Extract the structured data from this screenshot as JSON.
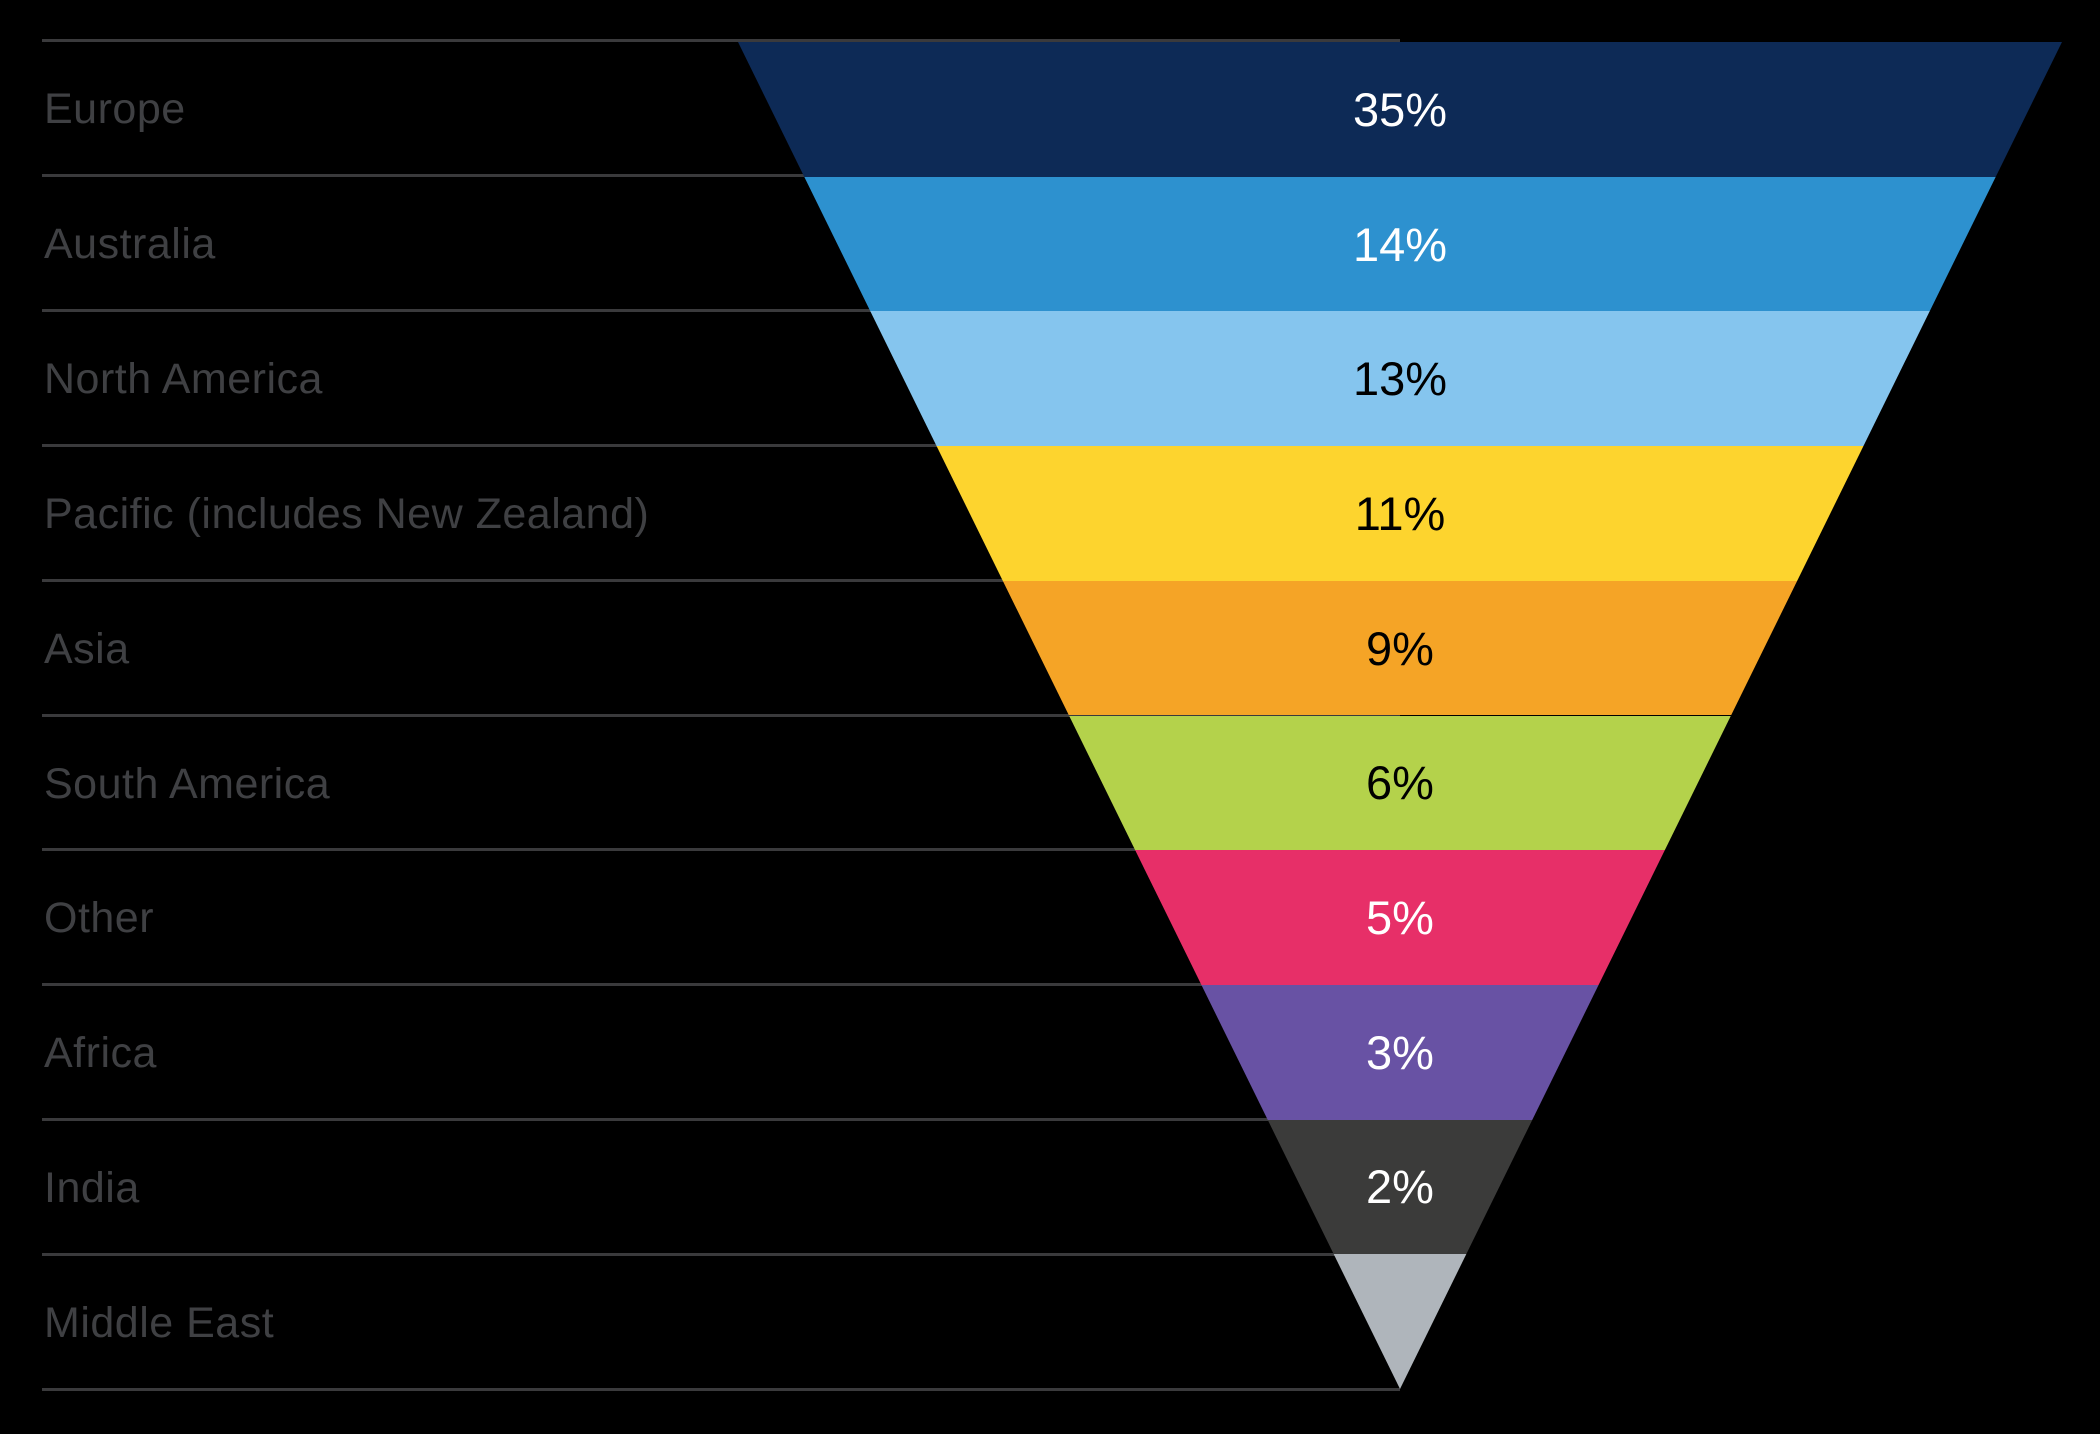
{
  "chart_data": {
    "type": "funnel",
    "orientation": "inverted-pyramid",
    "title": "",
    "legend_position": "left-labels",
    "background_color": "#000000",
    "divider_color": "#3a3a3c",
    "category_label_color": "#3f4043",
    "categories": [
      "Europe",
      "Australia",
      "North America",
      "Pacific (includes New Zealand)",
      "Asia",
      "South America",
      "Other",
      "Africa",
      "India",
      "Middle East"
    ],
    "values": [
      35,
      14,
      13,
      11,
      9,
      6,
      5,
      3,
      2,
      null
    ],
    "value_labels": [
      "35%",
      "14%",
      "13%",
      "11%",
      "9%",
      "6%",
      "5%",
      "3%",
      "2%",
      ""
    ],
    "segment_colors": [
      "#0d2a56",
      "#2d91cf",
      "#85c5ee",
      "#fdd42e",
      "#f5a426",
      "#b4d24b",
      "#e72f68",
      "#6852a4",
      "#3b3b3a",
      "#afb5bb"
    ],
    "value_text_colors": [
      "#ffffff",
      "#ffffff",
      "#000000",
      "#000000",
      "#000000",
      "#000000",
      "#ffffff",
      "#ffffff",
      "#ffffff",
      "#000000"
    ]
  }
}
